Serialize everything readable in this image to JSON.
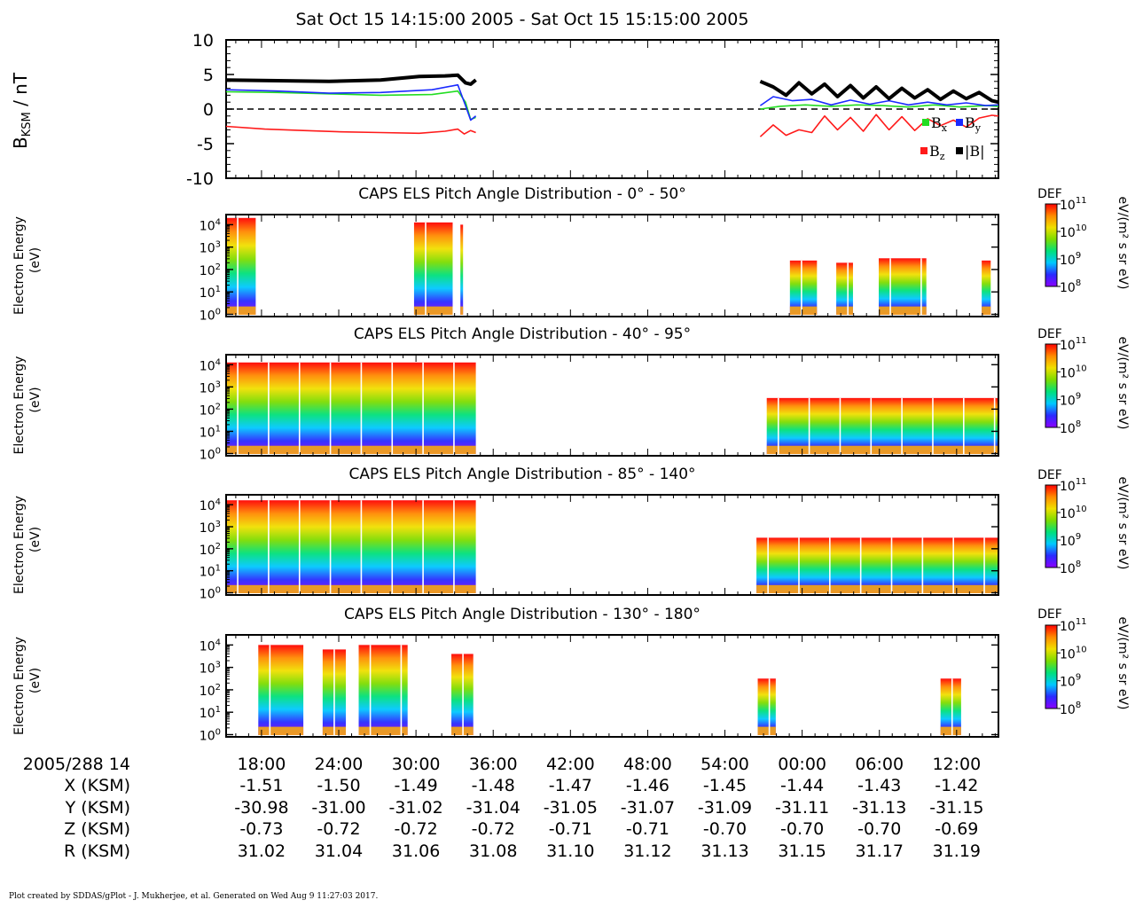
{
  "title": "Sat Oct 15 14:15:00 2005 - Sat Oct 15 15:15:00 2005",
  "footer": "Plot created by SDDAS/gPlot - J. Mukherjee, et al.  Generated on Wed Aug  9 11:27:03 2017.",
  "colors": {
    "bx": "#22dd22",
    "by": "#1a2aff",
    "bz": "#ff1a1a",
    "bmag": "#000000",
    "spectrogram_scale": [
      "#8a00ff",
      "#2a2aff",
      "#00c8ff",
      "#00e07a",
      "#7ddc00",
      "#f0e000",
      "#ff8a00",
      "#ff0000"
    ]
  },
  "x_axis": {
    "ticks": [
      "18:00",
      "24:00",
      "30:00",
      "36:00",
      "42:00",
      "48:00",
      "54:00",
      "00:00",
      "06:00",
      "12:00"
    ],
    "ephemeris": [
      {
        "label": "2005/288 14",
        "values": []
      },
      {
        "label": "X (KSM)",
        "values": [
          "-1.51",
          "-1.50",
          "-1.49",
          "-1.48",
          "-1.47",
          "-1.46",
          "-1.45",
          "-1.44",
          "-1.43",
          "-1.42"
        ]
      },
      {
        "label": "Y (KSM)",
        "values": [
          "-30.98",
          "-31.00",
          "-31.02",
          "-31.04",
          "-31.05",
          "-31.07",
          "-31.09",
          "-31.11",
          "-31.13",
          "-31.15"
        ]
      },
      {
        "label": "Z (KSM)",
        "values": [
          "-0.73",
          "-0.72",
          "-0.72",
          "-0.72",
          "-0.71",
          "-0.71",
          "-0.70",
          "-0.70",
          "-0.70",
          "-0.69"
        ]
      },
      {
        "label": "R (KSM)",
        "values": [
          "31.02",
          "31.04",
          "31.06",
          "31.08",
          "31.10",
          "31.12",
          "31.13",
          "31.15",
          "31.17",
          "31.19"
        ]
      }
    ]
  },
  "chart_data": [
    {
      "type": "line",
      "title": "",
      "ylabel": "B",
      "ylabel_sub": "KSM",
      "ylabel_unit": " / nT",
      "ylim": [
        -10,
        10
      ],
      "yticks": [
        "10",
        "5",
        "0",
        "-5",
        "-10"
      ],
      "x_units": "minutes after 14:15",
      "xlim": [
        0,
        60
      ],
      "zero_line": "dashed",
      "legend": [
        {
          "name": "B",
          "sub": "x",
          "key": "bx"
        },
        {
          "name": "B",
          "sub": "y",
          "key": "by"
        },
        {
          "name": "B",
          "sub": "z",
          "key": "bz"
        },
        {
          "name": "|B|",
          "sub": "",
          "key": "bmag"
        }
      ],
      "series": [
        {
          "name": "Bx",
          "key": "bx",
          "x": [
            0,
            4,
            8,
            12,
            16,
            18,
            18.6,
            19,
            19.4
          ],
          "y": [
            2.5,
            2.4,
            2.2,
            2.0,
            2.1,
            2.6,
            1.0,
            -1.5,
            -1.2
          ]
        },
        {
          "name": "Bx",
          "key": "bx",
          "x": [
            41.5,
            43,
            45,
            47,
            49,
            51,
            53,
            55,
            57,
            59,
            60
          ],
          "y": [
            0.0,
            0.4,
            0.6,
            0.4,
            0.6,
            0.5,
            0.3,
            0.6,
            0.3,
            0.5,
            0.4
          ]
        },
        {
          "name": "By",
          "key": "by",
          "x": [
            0,
            4,
            8,
            12,
            16,
            18,
            18.6,
            19,
            19.4
          ],
          "y": [
            2.8,
            2.6,
            2.3,
            2.4,
            2.8,
            3.5,
            0.5,
            -1.6,
            -1.0
          ]
        },
        {
          "name": "By",
          "key": "by",
          "x": [
            41.5,
            42.5,
            44,
            45.5,
            47,
            48.5,
            50,
            51.5,
            53,
            54.5,
            56,
            57.5,
            59,
            60
          ],
          "y": [
            0.5,
            1.8,
            1.2,
            1.4,
            0.6,
            1.3,
            0.7,
            1.2,
            0.6,
            1.0,
            0.6,
            0.9,
            0.5,
            0.6
          ]
        },
        {
          "name": "Bz",
          "key": "bz",
          "x": [
            0,
            3,
            6,
            9,
            12,
            15,
            17,
            18,
            18.5,
            19,
            19.4
          ],
          "y": [
            -2.5,
            -2.9,
            -3.1,
            -3.3,
            -3.4,
            -3.5,
            -3.2,
            -2.9,
            -3.6,
            -3.1,
            -3.4
          ]
        },
        {
          "name": "Bz",
          "key": "bz",
          "x": [
            41.5,
            42.5,
            43.5,
            44.5,
            45.5,
            46.5,
            47.5,
            48.5,
            49.5,
            50.5,
            51.5,
            52.5,
            53.5,
            54.5,
            55.5,
            56.5,
            57.5,
            58.5,
            59.5,
            60
          ],
          "y": [
            -4.0,
            -2.3,
            -3.8,
            -3.0,
            -3.4,
            -1.0,
            -3.0,
            -1.2,
            -3.2,
            -0.8,
            -3.0,
            -1.1,
            -3.1,
            -1.4,
            -2.4,
            -1.6,
            -2.6,
            -1.3,
            -0.9,
            -1.0
          ]
        },
        {
          "name": "|B|",
          "key": "bmag",
          "x": [
            0,
            4,
            8,
            12,
            15,
            17,
            18,
            18.6,
            19,
            19.4
          ],
          "y": [
            4.2,
            4.1,
            4.0,
            4.2,
            4.7,
            4.8,
            4.9,
            3.8,
            3.6,
            4.2
          ]
        },
        {
          "name": "|B|",
          "key": "bmag",
          "x": [
            41.5,
            42.5,
            43.5,
            44.5,
            45.5,
            46.5,
            47.5,
            48.5,
            49.5,
            50.5,
            51.5,
            52.5,
            53.5,
            54.5,
            55.5,
            56.5,
            57.5,
            58.5,
            59.5,
            60
          ],
          "y": [
            4.0,
            3.2,
            2.0,
            3.8,
            2.2,
            3.6,
            1.8,
            3.4,
            1.6,
            3.2,
            1.5,
            3.0,
            1.6,
            2.8,
            1.4,
            2.6,
            1.5,
            2.4,
            1.2,
            1.0
          ]
        }
      ]
    },
    {
      "type": "heatmap",
      "title": "CAPS ELS Pitch Angle Distribution - 0° - 50°",
      "ylabel": [
        "Electron Energy",
        "(eV)"
      ],
      "yticks_exp": [
        "0",
        "1",
        "2",
        "3",
        "4"
      ],
      "ylog": true,
      "colorbar": {
        "label": "DEF",
        "unit": "eV/(m² s sr eV)",
        "ticks_exp": [
          "8",
          "9",
          "10",
          "11"
        ]
      },
      "segments": [
        {
          "start": 0,
          "end": 2.3,
          "top_exp": 4.3
        },
        {
          "start": 14.6,
          "end": 17.6,
          "top_exp": 4.1
        },
        {
          "start": 18.2,
          "end": 18.4,
          "top_exp": 4.0
        },
        {
          "start": 43.8,
          "end": 45.9,
          "top_exp": 2.4
        },
        {
          "start": 47.4,
          "end": 48.7,
          "top_exp": 2.3
        },
        {
          "start": 50.7,
          "end": 54.4,
          "top_exp": 2.5
        },
        {
          "start": 58.7,
          "end": 59.4,
          "top_exp": 2.4
        }
      ]
    },
    {
      "type": "heatmap",
      "title": "CAPS ELS Pitch Angle Distribution - 40° - 95°",
      "ylabel": [
        "Electron Energy",
        "(eV)"
      ],
      "yticks_exp": [
        "0",
        "1",
        "2",
        "3",
        "4"
      ],
      "ylog": true,
      "colorbar": {
        "label": "DEF",
        "unit": "eV/(m² s sr eV)",
        "ticks_exp": [
          "8",
          "9",
          "10",
          "11"
        ]
      },
      "segments": [
        {
          "start": 0,
          "end": 19.4,
          "top_exp": 4.1
        },
        {
          "start": 42.0,
          "end": 60,
          "top_exp": 2.5
        }
      ]
    },
    {
      "type": "heatmap",
      "title": "CAPS ELS Pitch Angle Distribution - 85° - 140°",
      "ylabel": [
        "Electron Energy",
        "(eV)"
      ],
      "yticks_exp": [
        "0",
        "1",
        "2",
        "3",
        "4"
      ],
      "ylog": true,
      "colorbar": {
        "label": "DEF",
        "unit": "eV/(m² s sr eV)",
        "ticks_exp": [
          "8",
          "9",
          "10",
          "11"
        ]
      },
      "segments": [
        {
          "start": 0,
          "end": 19.4,
          "top_exp": 4.2
        },
        {
          "start": 41.2,
          "end": 60,
          "top_exp": 2.5
        }
      ]
    },
    {
      "type": "heatmap",
      "title": "CAPS ELS Pitch Angle Distribution - 130° - 180°",
      "ylabel": [
        "Electron Energy",
        "(eV)"
      ],
      "yticks_exp": [
        "0",
        "1",
        "2",
        "3",
        "4"
      ],
      "ylog": true,
      "colorbar": {
        "label": "DEF",
        "unit": "eV/(m² s sr eV)",
        "ticks_exp": [
          "8",
          "9",
          "10",
          "11"
        ]
      },
      "segments": [
        {
          "start": 2.5,
          "end": 6.0,
          "top_exp": 4.0
        },
        {
          "start": 7.5,
          "end": 9.3,
          "top_exp": 3.8
        },
        {
          "start": 10.3,
          "end": 14.1,
          "top_exp": 4.0
        },
        {
          "start": 17.5,
          "end": 19.2,
          "top_exp": 3.6
        },
        {
          "start": 41.3,
          "end": 42.7,
          "top_exp": 2.5
        },
        {
          "start": 55.5,
          "end": 57.1,
          "top_exp": 2.5
        }
      ]
    }
  ]
}
